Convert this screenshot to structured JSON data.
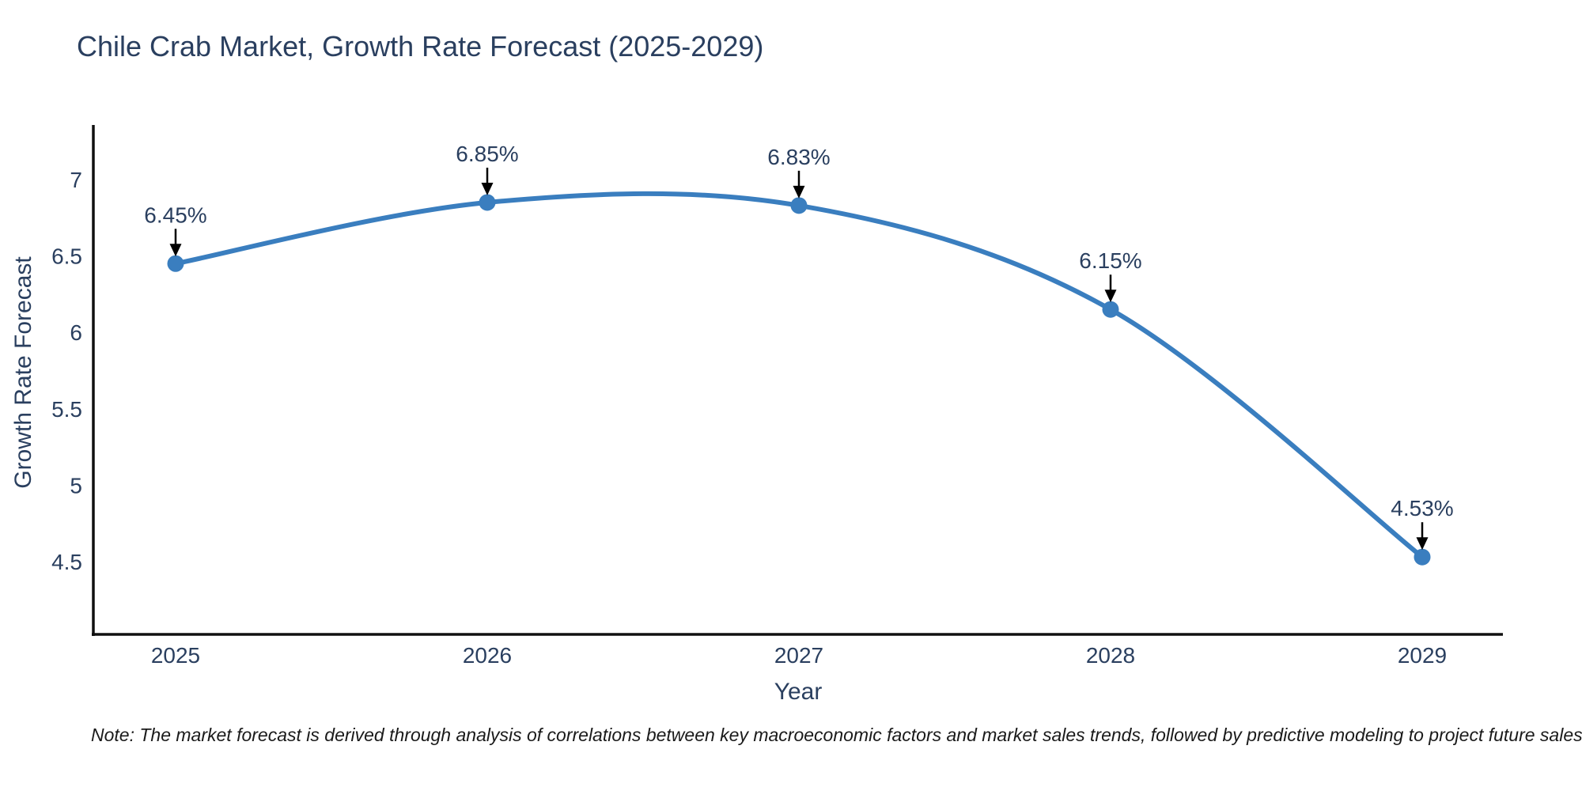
{
  "chart_data": {
    "type": "line",
    "title": "Chile Crab Market, Growth Rate Forecast (2025-2029)",
    "xlabel": "Year",
    "ylabel": "Growth Rate Forecast",
    "categories": [
      "2025",
      "2026",
      "2027",
      "2028",
      "2029"
    ],
    "values": [
      6.45,
      6.85,
      6.83,
      6.15,
      4.53
    ],
    "point_labels": [
      "6.45%",
      "6.85%",
      "6.83%",
      "6.15%",
      "4.53%"
    ],
    "yticks": [
      4.5,
      5,
      5.5,
      6,
      6.5,
      7
    ],
    "ylim": [
      4.02,
      7.36
    ],
    "grid": false,
    "legend_position": "none",
    "line_shape": "spline",
    "marker": "circle",
    "annotation_arrows": true
  },
  "note_text": "Note: The market forecast is derived through analysis of correlations between key macroeconomic factors and market sales trends, followed by predictive modeling to project future sales",
  "colors": {
    "line": "#3a7ebf",
    "marker": "#3a7ebf",
    "title_text": "#2a3f5f",
    "tick_text": "#2a3f5f",
    "axis_line": "#101010",
    "arrow": "#000000",
    "note_text": "#1a1a1a",
    "background": "#ffffff"
  }
}
